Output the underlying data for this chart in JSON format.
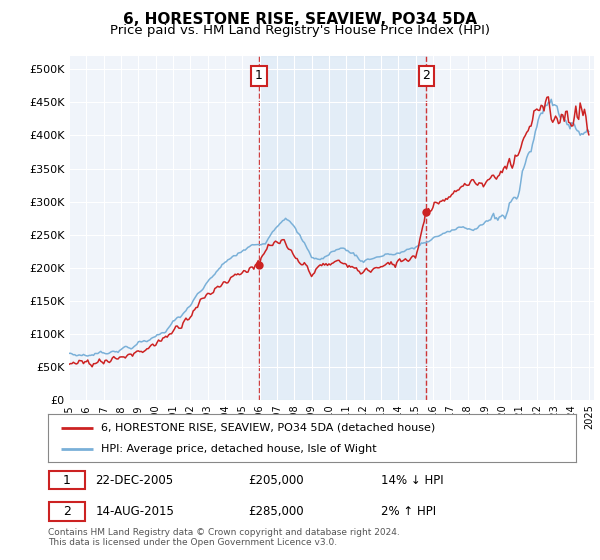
{
  "title": "6, HORESTONE RISE, SEAVIEW, PO34 5DA",
  "subtitle": "Price paid vs. HM Land Registry's House Price Index (HPI)",
  "title_fontsize": 11,
  "subtitle_fontsize": 9.5,
  "ylabel_ticks": [
    "£0",
    "£50K",
    "£100K",
    "£150K",
    "£200K",
    "£250K",
    "£300K",
    "£350K",
    "£400K",
    "£450K",
    "£500K"
  ],
  "ytick_values": [
    0,
    50000,
    100000,
    150000,
    200000,
    250000,
    300000,
    350000,
    400000,
    450000,
    500000
  ],
  "ylim": [
    0,
    520000
  ],
  "xlim_start": 1995.0,
  "xlim_end": 2025.3,
  "plot_bg": "#f0f4fa",
  "grid_color": "#ffffff",
  "hpi_color": "#7ab0d8",
  "price_color": "#cc2222",
  "purchase1_date": 2005.97,
  "purchase1_price": 205000,
  "purchase2_date": 2015.62,
  "purchase2_price": 285000,
  "legend_label1": "6, HORESTONE RISE, SEAVIEW, PO34 5DA (detached house)",
  "legend_label2": "HPI: Average price, detached house, Isle of Wight",
  "note1_date": "22-DEC-2005",
  "note1_price": "£205,000",
  "note1_hpi": "14% ↓ HPI",
  "note2_date": "14-AUG-2015",
  "note2_price": "£285,000",
  "note2_hpi": "2% ↑ HPI",
  "footer": "Contains HM Land Registry data © Crown copyright and database right 2024.\nThis data is licensed under the Open Government Licence v3.0."
}
